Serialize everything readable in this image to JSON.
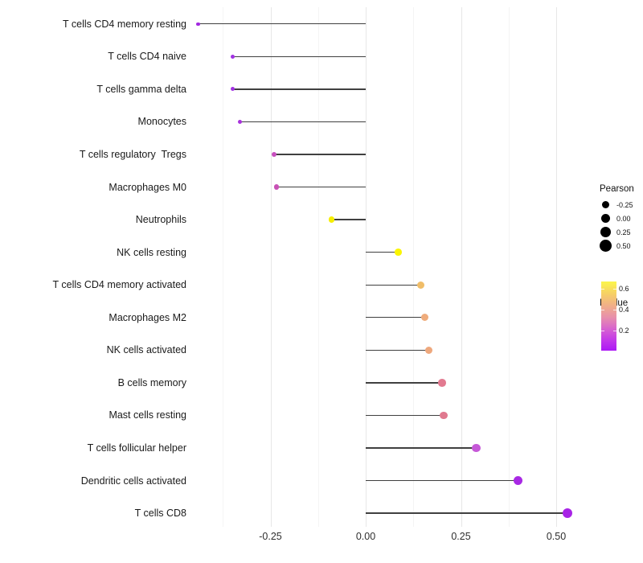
{
  "chart_data": {
    "type": "lollipop",
    "orientation": "horizontal",
    "title": "",
    "xlabel": "",
    "ylabel": "",
    "xlim": [
      -0.455,
      0.595
    ],
    "grid": "vertical-only",
    "x_ticks": [
      {
        "label": "-0.25",
        "value": -0.25
      },
      {
        "label": "0.00",
        "value": 0.0
      },
      {
        "label": "0.25",
        "value": 0.25
      },
      {
        "label": "0.50",
        "value": 0.5
      }
    ],
    "x_minor_ticks": [
      -0.375,
      -0.125,
      0.125,
      0.375
    ],
    "points": [
      {
        "label": "T cells CD4 memory resting",
        "pearson": -0.44,
        "pvalue": 0.05,
        "color": "#A228E0"
      },
      {
        "label": "T cells CD4 naive",
        "pearson": -0.35,
        "pvalue": 0.05,
        "color": "#A132E2"
      },
      {
        "label": "T cells gamma delta",
        "pearson": -0.35,
        "pvalue": 0.06,
        "color": "#A132E2"
      },
      {
        "label": "Monocytes",
        "pearson": -0.33,
        "pvalue": 0.07,
        "color": "#A832DC"
      },
      {
        "label": "T cells regulatory  Tregs",
        "pearson": -0.24,
        "pvalue": 0.15,
        "color": "#C74FBE"
      },
      {
        "label": "Macrophages M0",
        "pearson": -0.235,
        "pvalue": 0.16,
        "color": "#C851B5"
      },
      {
        "label": "Neutrophils",
        "pearson": -0.09,
        "pvalue": 0.62,
        "color": "#F6EE00"
      },
      {
        "label": "NK cells resting",
        "pearson": 0.085,
        "pvalue": 0.63,
        "color": "#FAF500"
      },
      {
        "label": "T cells CD4 memory activated",
        "pearson": 0.145,
        "pvalue": 0.45,
        "color": "#F0BD68"
      },
      {
        "label": "Macrophages M2",
        "pearson": 0.155,
        "pvalue": 0.42,
        "color": "#EFAC7C"
      },
      {
        "label": "NK cells activated",
        "pearson": 0.165,
        "pvalue": 0.41,
        "color": "#EEA87D"
      },
      {
        "label": "B cells memory",
        "pearson": 0.2,
        "pvalue": 0.32,
        "color": "#E27A90"
      },
      {
        "label": "Mast cells resting",
        "pearson": 0.205,
        "pvalue": 0.32,
        "color": "#E0798F"
      },
      {
        "label": "T cells follicular helper",
        "pearson": 0.29,
        "pvalue": 0.12,
        "color": "#C658D8"
      },
      {
        "label": "Dendritic cells activated",
        "pearson": 0.4,
        "pvalue": 0.04,
        "color": "#A829E4"
      },
      {
        "label": "T cells CD8",
        "pearson": 0.53,
        "pvalue": 0.02,
        "color": "#A824E6"
      }
    ],
    "legend": {
      "position": "right",
      "size": {
        "title": "Pearson",
        "dot_color": "#000000",
        "entries": [
          {
            "label": "-0.25",
            "value": -0.25
          },
          {
            "label": "0.00",
            "value": 0.0
          },
          {
            "label": "0.25",
            "value": 0.25
          },
          {
            "label": "0.50",
            "value": 0.5
          }
        ]
      },
      "color": {
        "title": "Pvalue",
        "domain": [
          0.01,
          0.665
        ],
        "ticks": [
          {
            "label": "0.6",
            "value": 0.6
          },
          {
            "label": "0.4",
            "value": 0.4
          },
          {
            "label": "0.2",
            "value": 0.2
          }
        ],
        "gradient": [
          {
            "pos": 0.0,
            "color": "#FBF64B"
          },
          {
            "pos": 0.18,
            "color": "#F6CF66"
          },
          {
            "pos": 0.36,
            "color": "#F0AD8B"
          },
          {
            "pos": 0.52,
            "color": "#E78FAC"
          },
          {
            "pos": 0.7,
            "color": "#D55FD2"
          },
          {
            "pos": 0.86,
            "color": "#C136EA"
          },
          {
            "pos": 1.0,
            "color": "#AC19F5"
          }
        ]
      }
    },
    "colors": {
      "background": "#ffffff",
      "stem": "#404040",
      "gridline_major": "#e7e7e7",
      "gridline_minor": "#f4f4f4",
      "axis_text": "#2e2e2e",
      "label_text": "#1a1a1a"
    }
  }
}
